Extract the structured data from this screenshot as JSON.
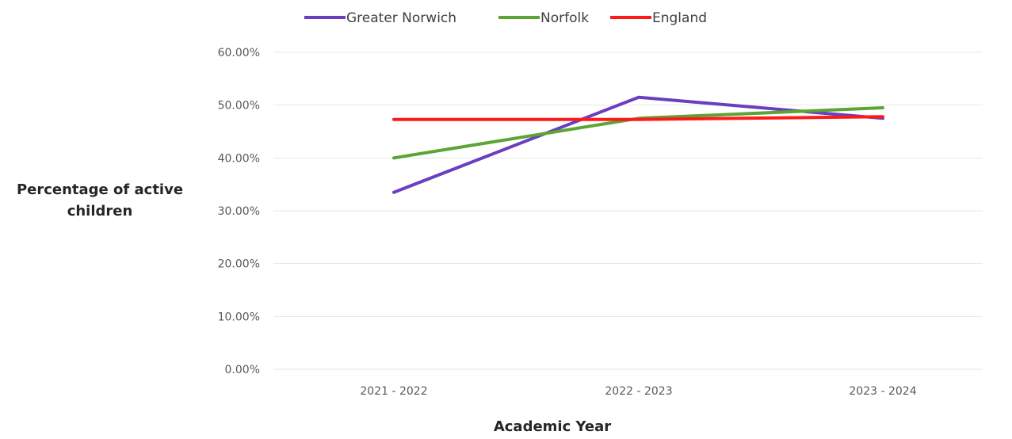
{
  "chart_data": {
    "type": "line",
    "categories": [
      "2021 - 2022",
      "2022 - 2023",
      "2023 - 2024"
    ],
    "series": [
      {
        "name": "Greater Norwich",
        "color": "#6a3fbf",
        "values": [
          33.5,
          51.5,
          47.5
        ]
      },
      {
        "name": "Norfolk",
        "color": "#5ca435",
        "values": [
          40.0,
          47.5,
          49.5
        ]
      },
      {
        "name": "England",
        "color": "#ff1a1a",
        "values": [
          47.3,
          47.3,
          47.8
        ]
      }
    ],
    "y_ticks": [
      "0.00%",
      "10.00%",
      "20.00%",
      "30.00%",
      "40.00%",
      "50.00%",
      "60.00%"
    ],
    "ylim": [
      0,
      60
    ],
    "xlabel": "Academic Year",
    "ylabel_lines": [
      "Percentage of active",
      "children"
    ],
    "legend_position": "top",
    "grid": true
  }
}
